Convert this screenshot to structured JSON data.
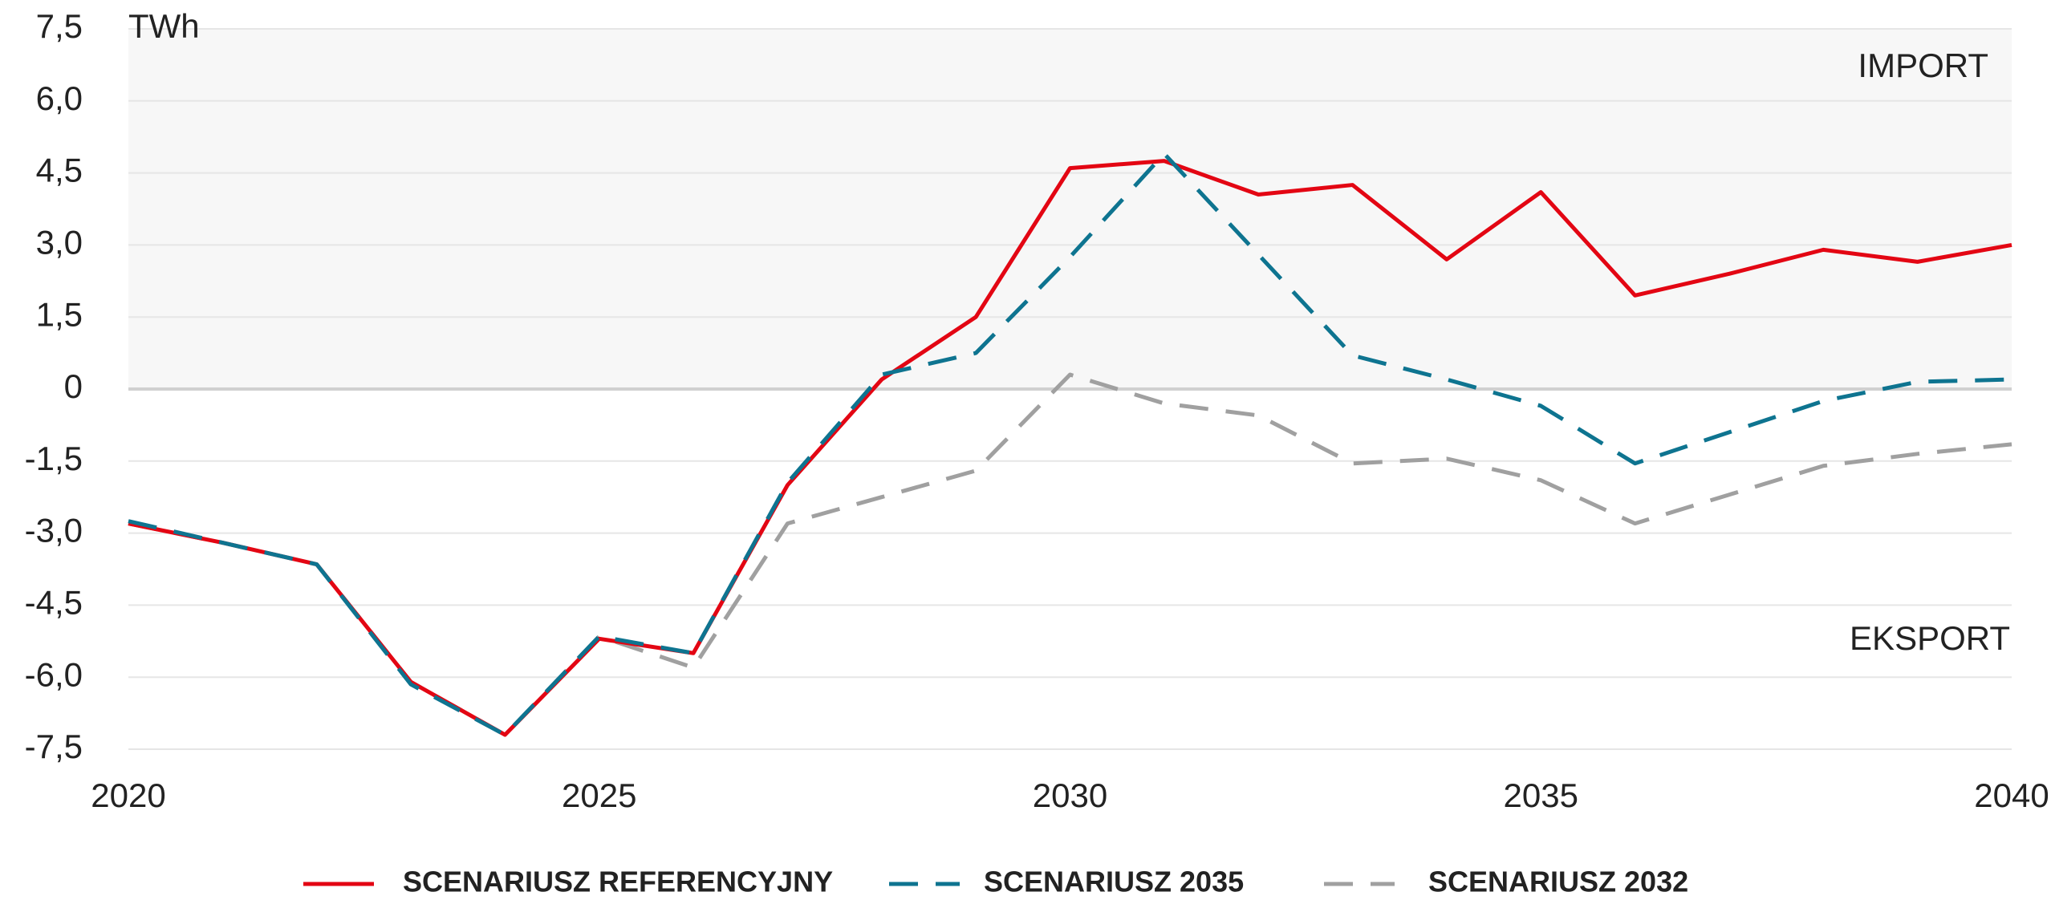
{
  "chart_data": {
    "type": "line",
    "y_label": "TWh",
    "annotations": [
      "IMPORT",
      "EKSPORT"
    ],
    "x": [
      2020,
      2021,
      2022,
      2023,
      2024,
      2025,
      2026,
      2027,
      2028,
      2029,
      2030,
      2031,
      2032,
      2033,
      2034,
      2035,
      2036,
      2037,
      2038,
      2039,
      2040
    ],
    "series": [
      {
        "name": "SCENARIUSZ 2032",
        "color": "#a0a0a0",
        "dash": "dashed",
        "values": [
          -2.8,
          -3.2,
          -3.65,
          -6.1,
          -7.2,
          -5.15,
          -5.8,
          -2.8,
          -2.25,
          -1.7,
          0.3,
          -0.3,
          -0.55,
          -1.55,
          -1.45,
          -1.9,
          -2.8,
          -2.2,
          -1.6,
          -1.35,
          -1.15
        ]
      },
      {
        "name": "SCENARIUSZ REFERENCYJNY",
        "color": "#e30613",
        "dash": "solid",
        "values": [
          -2.8,
          -3.2,
          -3.65,
          -6.1,
          -7.2,
          -5.2,
          -5.5,
          -2.0,
          0.2,
          1.5,
          4.6,
          4.75,
          4.05,
          4.25,
          2.7,
          4.1,
          1.95,
          2.4,
          2.9,
          2.65,
          3.0
        ]
      },
      {
        "name": "SCENARIUSZ 2035",
        "color": "#0e7490",
        "dash": "dashed",
        "values": [
          -2.75,
          -3.2,
          -3.65,
          -6.15,
          -7.2,
          -5.15,
          -5.5,
          -1.95,
          0.3,
          0.75,
          2.75,
          4.9,
          2.8,
          0.7,
          0.2,
          -0.35,
          -1.55,
          -0.9,
          -0.25,
          0.15,
          0.2
        ]
      }
    ],
    "legend_order": [
      1,
      2,
      0
    ],
    "xlim": [
      2020,
      2040
    ],
    "xticks": [
      2020,
      2025,
      2030,
      2035,
      2040
    ],
    "ylim": [
      -7.5,
      7.5
    ],
    "yticks": [
      {
        "value": -7.5,
        "label": "-7,5"
      },
      {
        "value": -6,
        "label": "-6,0"
      },
      {
        "value": -4.5,
        "label": "-4,5"
      },
      {
        "value": -3,
        "label": "-3,0"
      },
      {
        "value": -1.5,
        "label": "-1,5"
      },
      0,
      {
        "value": 1.5,
        "label": "1,5"
      },
      {
        "value": 3,
        "label": "3,0"
      },
      {
        "value": 4.5,
        "label": "4,5"
      },
      {
        "value": 6,
        "label": "6,0"
      },
      {
        "value": 7.5,
        "label": "7,5"
      }
    ],
    "grid": true,
    "positive_shade": "#f7f7f7",
    "legend": "bottom"
  }
}
